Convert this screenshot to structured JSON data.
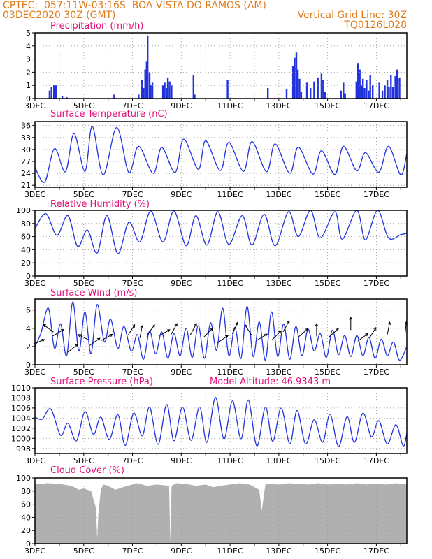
{
  "header": {
    "line1_left": "CPTEC:  057:11W-03:16S  BOA VISTA DO RAMOS (AM)",
    "line2_left": "03DEC2020 30Z (GMT)",
    "line2_right": "Vertical Grid Line: 30Z",
    "line3_right": "TQ0126L028"
  },
  "colors": {
    "header": "#e07a1a",
    "title": "#e0107a",
    "series": "#2233dd",
    "cloud": "#b0b0b0",
    "grid": "#999999"
  },
  "x_axis": {
    "labels": [
      "3DEC",
      "5DEC",
      "7DEC",
      "9DEC",
      "11DEC",
      "13DEC",
      "15DEC",
      "17DEC"
    ],
    "label_days": [
      3,
      5,
      7,
      9,
      11,
      13,
      15,
      17
    ],
    "day_range": [
      3,
      18.25
    ]
  },
  "chart_data": [
    {
      "type": "bar",
      "title": "Precipitation (mm/h)",
      "ylim": [
        0,
        5
      ],
      "yticks": [
        0,
        1,
        2,
        3,
        4,
        5
      ],
      "x": [
        3.6,
        3.68,
        3.78,
        3.86,
        4.12,
        4.3,
        6.25,
        7.25,
        7.38,
        7.45,
        7.52,
        7.58,
        7.62,
        7.7,
        7.75,
        7.82,
        8.25,
        8.32,
        8.4,
        8.45,
        8.52,
        8.6,
        9.5,
        9.55,
        10.9,
        12.55,
        13.32,
        13.58,
        13.65,
        13.72,
        13.78,
        13.85,
        13.92,
        14.15,
        14.3,
        14.45,
        14.6,
        14.75,
        14.82,
        14.9,
        15.55,
        15.65,
        15.72,
        16.18,
        16.25,
        16.32,
        16.38,
        16.45,
        16.52,
        16.6,
        16.68,
        16.75,
        16.85,
        17.12,
        17.25,
        17.35,
        17.45,
        17.52,
        17.6,
        17.68,
        17.78,
        17.85,
        17.95
      ],
      "values": [
        0.6,
        0.9,
        1.0,
        1.0,
        0.2,
        0.1,
        0.3,
        0.3,
        1.4,
        0.8,
        2.2,
        2.8,
        4.8,
        2.0,
        1.0,
        1.2,
        1.0,
        1.2,
        0.8,
        1.6,
        1.3,
        1.0,
        1.8,
        0.3,
        1.4,
        0.8,
        0.7,
        2.5,
        3.1,
        3.5,
        2.2,
        1.5,
        0.5,
        1.2,
        0.8,
        1.3,
        1.6,
        1.9,
        1.4,
        0.5,
        0.6,
        1.2,
        0.4,
        1.3,
        2.7,
        2.2,
        1.0,
        1.5,
        0.8,
        1.4,
        0.6,
        1.8,
        1.0,
        1.2,
        0.6,
        1.0,
        1.4,
        0.9,
        1.8,
        0.9,
        1.7,
        2.2,
        1.6
      ]
    },
    {
      "type": "line",
      "title": "Surface Temperature (nC)",
      "ylim": [
        20.5,
        37
      ],
      "yticks": [
        21,
        24,
        27,
        30,
        33,
        36
      ],
      "x": [
        3.0,
        3.4,
        3.8,
        4.25,
        4.6,
        5.05,
        5.35,
        5.8,
        6.35,
        6.85,
        7.25,
        7.85,
        8.2,
        8.75,
        9.1,
        9.7,
        10.0,
        10.6,
        10.95,
        11.55,
        11.9,
        12.5,
        12.85,
        13.45,
        13.8,
        14.4,
        14.75,
        15.3,
        15.65,
        16.2,
        16.55,
        17.1,
        17.5,
        18.0,
        18.25
      ],
      "values": [
        25.5,
        21.8,
        30.2,
        24.4,
        34.0,
        24.5,
        35.8,
        23.6,
        35.5,
        24.2,
        30.8,
        24.0,
        30.5,
        24.2,
        32.6,
        25.0,
        32.2,
        24.7,
        31.8,
        24.5,
        32.0,
        24.4,
        31.4,
        24.0,
        30.6,
        23.8,
        29.7,
        23.7,
        30.8,
        24.6,
        29.2,
        24.3,
        30.8,
        23.6,
        29.0
      ]
    },
    {
      "type": "line",
      "title": "Relative Humidity (%)",
      "ylim": [
        0,
        100
      ],
      "yticks": [
        0,
        20,
        40,
        60,
        80,
        100
      ],
      "x": [
        3.0,
        3.45,
        3.9,
        4.35,
        4.75,
        5.15,
        5.55,
        5.95,
        6.4,
        6.85,
        7.3,
        7.75,
        8.25,
        8.7,
        9.2,
        9.6,
        10.05,
        10.5,
        10.95,
        11.5,
        11.9,
        12.4,
        12.85,
        13.4,
        13.8,
        14.3,
        14.7,
        15.3,
        15.6,
        16.2,
        16.55,
        17.05,
        17.5,
        18.0,
        18.25
      ],
      "values": [
        72,
        95,
        62,
        92,
        45,
        70,
        35,
        92,
        34,
        82,
        52,
        99,
        52,
        99,
        46,
        92,
        47,
        98,
        48,
        92,
        47,
        94,
        46,
        98,
        60,
        100,
        58,
        98,
        56,
        100,
        55,
        100,
        58,
        63,
        65
      ]
    },
    {
      "type": "line",
      "title": "Surface Wind (m/s)",
      "ylim": [
        0,
        7.2
      ],
      "yticks": [
        0,
        2,
        4,
        6
      ],
      "x": [
        3.0,
        3.25,
        3.55,
        3.8,
        4.05,
        4.3,
        4.55,
        4.8,
        5.05,
        5.3,
        5.55,
        5.85,
        6.1,
        6.4,
        6.65,
        6.95,
        7.2,
        7.45,
        7.7,
        7.95,
        8.2,
        8.45,
        8.7,
        8.95,
        9.2,
        9.45,
        9.7,
        9.95,
        10.2,
        10.45,
        10.7,
        10.95,
        11.2,
        11.45,
        11.7,
        11.95,
        12.2,
        12.45,
        12.7,
        12.95,
        13.2,
        13.45,
        13.7,
        13.95,
        14.2,
        14.45,
        14.7,
        14.95,
        15.2,
        15.45,
        15.7,
        15.95,
        16.2,
        16.45,
        16.7,
        16.95,
        17.2,
        17.45,
        17.7,
        17.95,
        18.25
      ],
      "values": [
        2.0,
        3.5,
        6.2,
        1.8,
        4.5,
        1.0,
        6.9,
        1.5,
        5.8,
        1.2,
        6.6,
        2.5,
        5.0,
        1.8,
        4.2,
        1.5,
        3.3,
        0.6,
        3.7,
        1.2,
        3.6,
        0.7,
        3.4,
        1.0,
        4.0,
        0.8,
        4.3,
        0.7,
        4.6,
        1.6,
        6.2,
        1.0,
        4.1,
        0.7,
        6.4,
        0.9,
        4.7,
        0.5,
        5.8,
        0.9,
        4.5,
        0.6,
        4.2,
        1.0,
        3.9,
        1.5,
        3.4,
        0.8,
        3.8,
        1.1,
        3.2,
        0.9,
        3.2,
        1.0,
        3.0,
        0.7,
        2.8,
        1.0,
        2.5,
        0.5,
        2.0
      ]
    },
    {
      "type": "line",
      "title": "Surface Pressure (hPa)",
      "annotation": "Model Altitude: 46.9343 m",
      "ylim": [
        997,
        1010
      ],
      "yticks": [
        998,
        1000,
        1002,
        1004,
        1006,
        1008,
        1010
      ],
      "x": [
        3.0,
        3.3,
        3.65,
        4.05,
        4.35,
        4.7,
        5.05,
        5.4,
        5.7,
        6.05,
        6.4,
        6.7,
        7.05,
        7.4,
        7.7,
        8.05,
        8.4,
        8.7,
        9.05,
        9.4,
        9.75,
        10.05,
        10.4,
        10.75,
        11.1,
        11.45,
        11.75,
        12.1,
        12.45,
        12.75,
        13.1,
        13.45,
        13.75,
        14.1,
        14.45,
        14.8,
        15.1,
        15.45,
        15.8,
        16.1,
        16.45,
        16.8,
        17.1,
        17.45,
        17.8,
        18.1,
        18.25
      ],
      "values": [
        1004.2,
        1003.8,
        1005.8,
        1000.6,
        1003.0,
        999.5,
        1005.3,
        1000.8,
        1004.2,
        999.8,
        1004.7,
        998.6,
        1005.0,
        1000.5,
        1006.2,
        998.8,
        1006.7,
        999.5,
        1006.2,
        999.6,
        1006.2,
        999.2,
        1008.1,
        999.9,
        1007.4,
        999.9,
        1007.6,
        998.5,
        1006.2,
        999.4,
        1006.0,
        998.9,
        1005.5,
        998.9,
        1003.7,
        999.2,
        1004.8,
        998.4,
        1004.3,
        999.2,
        1005.0,
        1000.3,
        1003.5,
        998.9,
        1002.7,
        998.5,
        1001.0
      ]
    },
    {
      "type": "area",
      "title": "Cloud Cover (%)",
      "ylim": [
        0,
        100
      ],
      "yticks": [
        0,
        20,
        40,
        60,
        80,
        100
      ],
      "x": [
        3.0,
        3.5,
        4.0,
        4.5,
        4.8,
        5.0,
        5.3,
        5.5,
        5.55,
        5.6,
        5.7,
        5.8,
        6.0,
        6.3,
        6.6,
        7.0,
        7.2,
        7.6,
        8.0,
        8.5,
        8.55,
        8.6,
        8.7,
        8.8,
        9.2,
        9.6,
        10.0,
        10.3,
        10.6,
        11.0,
        11.4,
        11.8,
        12.0,
        12.2,
        12.3,
        12.45,
        12.6,
        13.0,
        13.4,
        13.8,
        14.2,
        14.6,
        15.0,
        15.4,
        15.8,
        16.2,
        16.6,
        17.0,
        17.4,
        17.8,
        18.25
      ],
      "values": [
        90,
        92,
        91,
        88,
        82,
        84,
        80,
        55,
        8,
        45,
        82,
        90,
        88,
        82,
        86,
        90,
        92,
        88,
        90,
        88,
        2,
        88,
        90,
        92,
        91,
        88,
        90,
        86,
        88,
        90,
        92,
        90,
        86,
        82,
        50,
        90,
        91,
        90,
        92,
        91,
        90,
        92,
        90,
        91,
        90,
        92,
        90,
        91,
        90,
        92,
        90
      ]
    }
  ],
  "wind_arrows": [
    {
      "day": 3.15,
      "speed": 2.5,
      "dx": 1,
      "dy": 0.4
    },
    {
      "day": 3.55,
      "speed": 4.0,
      "dx": -0.8,
      "dy": 0.6
    },
    {
      "day": 3.95,
      "speed": 3.5,
      "dx": 1,
      "dy": 0.6
    },
    {
      "day": 4.55,
      "speed": 1.8,
      "dx": 1,
      "dy": 0.8
    },
    {
      "day": 5.0,
      "speed": 3.0,
      "dx": -1,
      "dy": 0.5
    },
    {
      "day": 5.45,
      "speed": 2.5,
      "dx": 1,
      "dy": 0.7
    },
    {
      "day": 5.95,
      "speed": 3.0,
      "dx": 0.9,
      "dy": 0.5
    },
    {
      "day": 6.95,
      "speed": 3.8,
      "dx": 0.5,
      "dy": 0.8
    },
    {
      "day": 7.35,
      "speed": 3.6,
      "dx": 0.2,
      "dy": 1
    },
    {
      "day": 7.75,
      "speed": 3.8,
      "dx": 0.6,
      "dy": 0.8
    },
    {
      "day": 8.3,
      "speed": 3.5,
      "dx": 0.9,
      "dy": 0.5
    },
    {
      "day": 8.7,
      "speed": 3.9,
      "dx": 0.5,
      "dy": 0.9
    },
    {
      "day": 9.5,
      "speed": 3.9,
      "dx": 0.5,
      "dy": 0.9
    },
    {
      "day": 10.1,
      "speed": 3.5,
      "dx": 0.7,
      "dy": 0.7
    },
    {
      "day": 10.7,
      "speed": 2.8,
      "dx": 1,
      "dy": 0.7
    },
    {
      "day": 11.2,
      "speed": 4.0,
      "dx": 0.4,
      "dy": 0.9
    },
    {
      "day": 11.75,
      "speed": 3.8,
      "dx": -0.5,
      "dy": 0.8
    },
    {
      "day": 12.3,
      "speed": 3.0,
      "dx": 1,
      "dy": 0.6
    },
    {
      "day": 12.9,
      "speed": 3.2,
      "dx": 0.8,
      "dy": 0.8
    },
    {
      "day": 13.3,
      "speed": 4.2,
      "dx": 0.5,
      "dy": 0.9
    },
    {
      "day": 14.0,
      "speed": 3.5,
      "dx": 0.8,
      "dy": 0.7
    },
    {
      "day": 14.55,
      "speed": 3.8,
      "dx": 0,
      "dy": 1
    },
    {
      "day": 15.25,
      "speed": 3.5,
      "dx": 0.8,
      "dy": 0.7
    },
    {
      "day": 15.95,
      "speed": 4.5,
      "dx": 0,
      "dy": 1
    },
    {
      "day": 16.45,
      "speed": 3.0,
      "dx": 0.8,
      "dy": 0.6
    },
    {
      "day": 16.85,
      "speed": 3.5,
      "dx": 0.5,
      "dy": 0.8
    },
    {
      "day": 17.5,
      "speed": 4.0,
      "dx": 0.2,
      "dy": 1
    },
    {
      "day": 18.2,
      "speed": 4.0,
      "dx": 0.1,
      "dy": 1
    }
  ]
}
